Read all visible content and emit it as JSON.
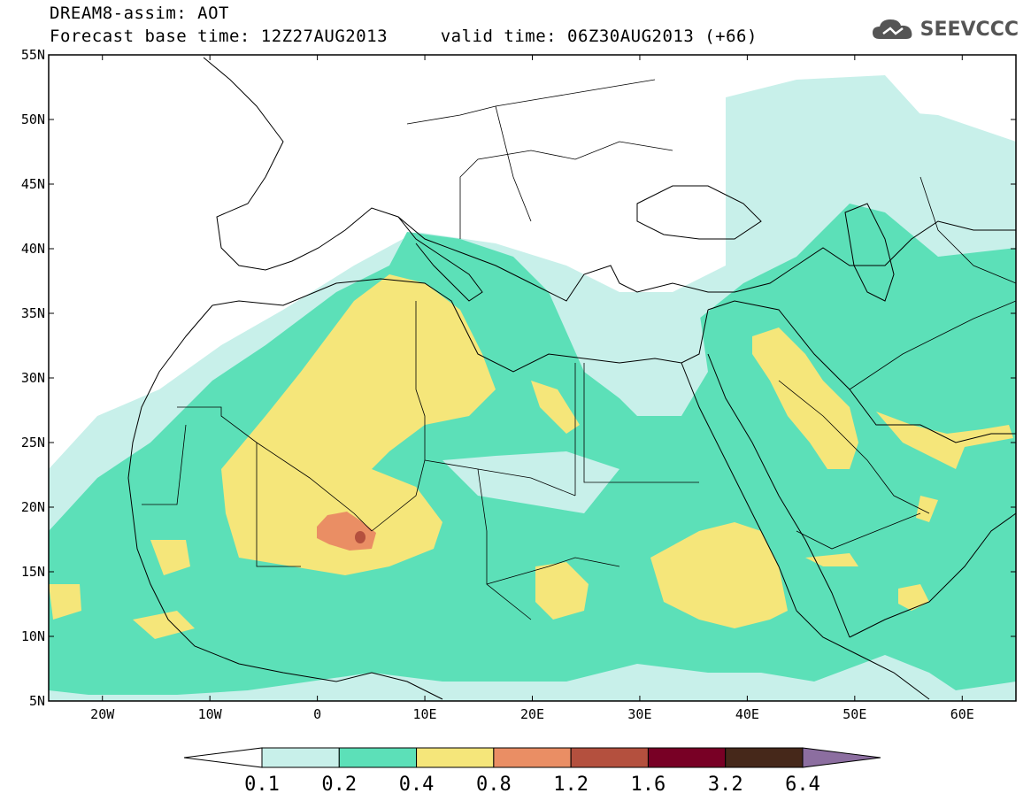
{
  "header": {
    "line1": "DREAM8-assim: AOT",
    "line2": "Forecast base time: 12Z27AUG2013     valid time: 06Z30AUG2013 (+66)"
  },
  "logo": {
    "text": "SEEVCCC",
    "icon": "cloud-icon"
  },
  "map": {
    "lat_range": [
      5,
      55
    ],
    "lon_range": [
      -25,
      65
    ],
    "lat_ticks": [
      "55N",
      "50N",
      "45N",
      "40N",
      "35N",
      "30N",
      "25N",
      "20N",
      "15N",
      "10N",
      "5N"
    ],
    "lon_ticks": [
      "20W",
      "10W",
      "0",
      "10E",
      "20E",
      "30E",
      "40E",
      "50E",
      "60E"
    ]
  },
  "colorbar": {
    "labels": [
      "0.1",
      "0.2",
      "0.4",
      "0.8",
      "1.2",
      "1.6",
      "3.2",
      "6.4"
    ],
    "colors": [
      "#ffffff",
      "#c8f0ea",
      "#5ce0b8",
      "#f5e67a",
      "#ea8e64",
      "#b4503e",
      "#780025",
      "#46281a",
      "#8c6ea0"
    ]
  }
}
